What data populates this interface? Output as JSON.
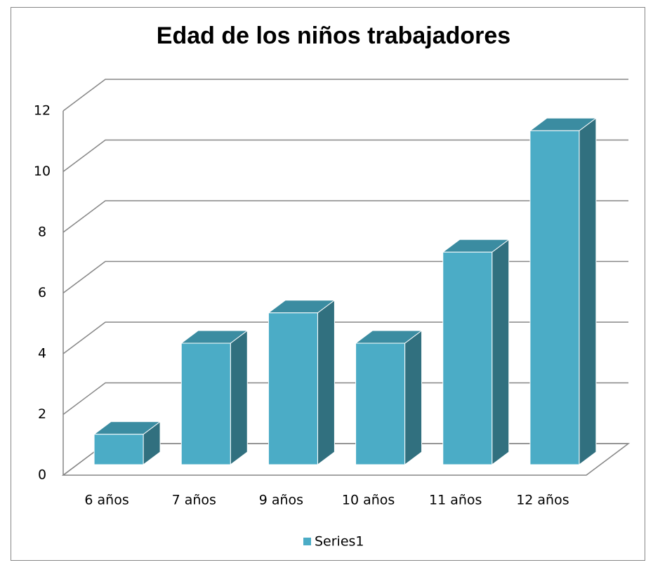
{
  "chart_data": {
    "type": "bar3d",
    "title": "Edad de los niños trabajadores",
    "categories": [
      "6 años",
      "7 años",
      "9 años",
      "10 años",
      "11 años",
      "12 años"
    ],
    "series": [
      {
        "name": "Series1",
        "color": "#4bacc6",
        "values": [
          1,
          4,
          5,
          4,
          7,
          11
        ]
      }
    ],
    "ylim": [
      0,
      12
    ],
    "yticks": [
      0,
      2,
      4,
      6,
      8,
      10,
      12
    ],
    "grid": true,
    "legend": "bottom"
  }
}
